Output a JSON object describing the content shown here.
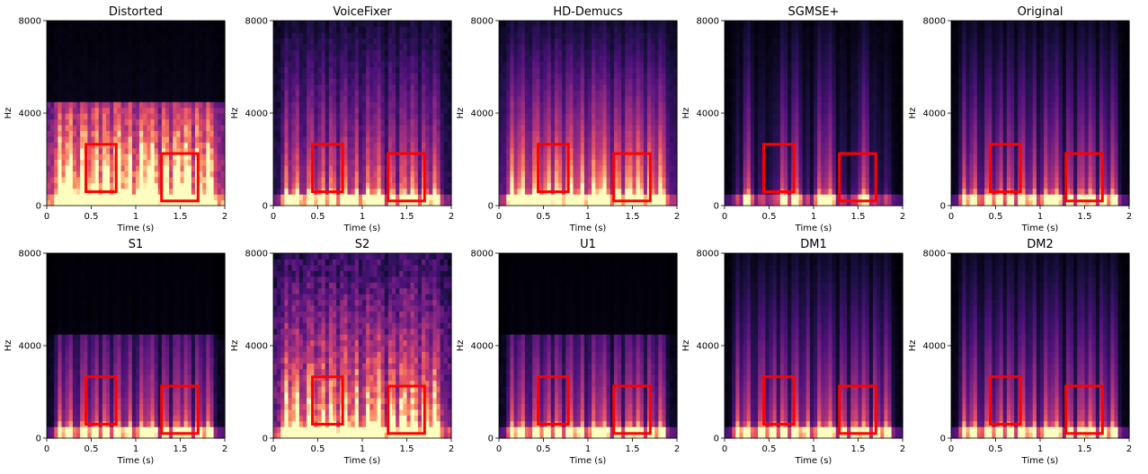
{
  "figure": {
    "background": "#ffffff",
    "spectrogram_colormap": "magma",
    "highlight_color": "#ff0000"
  },
  "chart_data": [
    {
      "type": "heatmap",
      "title": "Distorted",
      "xlabel": "Time (s)",
      "ylabel": "Hz",
      "xlim": [
        0,
        2
      ],
      "ylim": [
        0,
        8000
      ],
      "xticks": [
        "0",
        "0.5",
        "1",
        "1.5",
        "2"
      ],
      "yticks": [
        "0",
        "4000",
        "8000"
      ],
      "profile": "bandlimited",
      "highlight_boxes": [
        {
          "t0": 0.44,
          "t1": 0.78,
          "f0": 600,
          "f1": 2650
        },
        {
          "t0": 1.29,
          "t1": 1.7,
          "f0": 200,
          "f1": 2250
        }
      ]
    },
    {
      "type": "heatmap",
      "title": "VoiceFixer",
      "xlabel": "Time (s)",
      "ylabel": "Hz",
      "xlim": [
        0,
        2
      ],
      "ylim": [
        0,
        8000
      ],
      "xticks": [
        "0",
        "0.5",
        "1",
        "1.5",
        "2"
      ],
      "yticks": [
        "0",
        "4000",
        "8000"
      ],
      "profile": "fullband",
      "highlight_boxes": [
        {
          "t0": 0.44,
          "t1": 0.78,
          "f0": 600,
          "f1": 2650
        },
        {
          "t0": 1.29,
          "t1": 1.7,
          "f0": 200,
          "f1": 2250
        }
      ]
    },
    {
      "type": "heatmap",
      "title": "HD-Demucs",
      "xlabel": "Time (s)",
      "ylabel": "Hz",
      "xlim": [
        0,
        2
      ],
      "ylim": [
        0,
        8000
      ],
      "xticks": [
        "0",
        "0.5",
        "1",
        "1.5",
        "2"
      ],
      "yticks": [
        "0",
        "4000",
        "8000"
      ],
      "profile": "smeared",
      "highlight_boxes": [
        {
          "t0": 0.44,
          "t1": 0.78,
          "f0": 600,
          "f1": 2650
        },
        {
          "t0": 1.29,
          "t1": 1.7,
          "f0": 200,
          "f1": 2250
        }
      ]
    },
    {
      "type": "heatmap",
      "title": "SGMSE+",
      "xlabel": "Time (s)",
      "ylabel": "Hz",
      "xlim": [
        0,
        2
      ],
      "ylim": [
        0,
        8000
      ],
      "xticks": [
        "0",
        "0.5",
        "1",
        "1.5",
        "2"
      ],
      "yticks": [
        "0",
        "4000",
        "8000"
      ],
      "profile": "sparse",
      "highlight_boxes": [
        {
          "t0": 0.44,
          "t1": 0.78,
          "f0": 600,
          "f1": 2650
        },
        {
          "t0": 1.29,
          "t1": 1.7,
          "f0": 200,
          "f1": 2250
        }
      ]
    },
    {
      "type": "heatmap",
      "title": "Original",
      "xlabel": "Time (s)",
      "ylabel": "Hz",
      "xlim": [
        0,
        2
      ],
      "ylim": [
        0,
        8000
      ],
      "xticks": [
        "0",
        "0.5",
        "1",
        "1.5",
        "2"
      ],
      "yticks": [
        "0",
        "4000",
        "8000"
      ],
      "profile": "clean",
      "highlight_boxes": [
        {
          "t0": 0.44,
          "t1": 0.78,
          "f0": 600,
          "f1": 2650
        },
        {
          "t0": 1.29,
          "t1": 1.7,
          "f0": 200,
          "f1": 2250
        }
      ]
    },
    {
      "type": "heatmap",
      "title": "S1",
      "xlabel": "Time (s)",
      "ylabel": "Hz",
      "xlim": [
        0,
        2
      ],
      "ylim": [
        0,
        8000
      ],
      "xticks": [
        "0",
        "0.5",
        "1",
        "1.5",
        "2"
      ],
      "yticks": [
        "0",
        "4000",
        "8000"
      ],
      "profile": "bandlimited_clean",
      "highlight_boxes": [
        {
          "t0": 0.44,
          "t1": 0.78,
          "f0": 600,
          "f1": 2650
        },
        {
          "t0": 1.29,
          "t1": 1.7,
          "f0": 200,
          "f1": 2250
        }
      ]
    },
    {
      "type": "heatmap",
      "title": "S2",
      "xlabel": "Time (s)",
      "ylabel": "Hz",
      "xlim": [
        0,
        2
      ],
      "ylim": [
        0,
        8000
      ],
      "xticks": [
        "0",
        "0.5",
        "1",
        "1.5",
        "2"
      ],
      "yticks": [
        "0",
        "4000",
        "8000"
      ],
      "profile": "noisy",
      "highlight_boxes": [
        {
          "t0": 0.44,
          "t1": 0.78,
          "f0": 600,
          "f1": 2650
        },
        {
          "t0": 1.29,
          "t1": 1.7,
          "f0": 200,
          "f1": 2250
        }
      ]
    },
    {
      "type": "heatmap",
      "title": "U1",
      "xlabel": "Time (s)",
      "ylabel": "Hz",
      "xlim": [
        0,
        2
      ],
      "ylim": [
        0,
        8000
      ],
      "xticks": [
        "0",
        "0.5",
        "1",
        "1.5",
        "2"
      ],
      "yticks": [
        "0",
        "4000",
        "8000"
      ],
      "profile": "bandlimited_clean",
      "highlight_boxes": [
        {
          "t0": 0.44,
          "t1": 0.78,
          "f0": 600,
          "f1": 2650
        },
        {
          "t0": 1.29,
          "t1": 1.7,
          "f0": 200,
          "f1": 2250
        }
      ]
    },
    {
      "type": "heatmap",
      "title": "DM1",
      "xlabel": "Time (s)",
      "ylabel": "Hz",
      "xlim": [
        0,
        2
      ],
      "ylim": [
        0,
        8000
      ],
      "xticks": [
        "0",
        "0.5",
        "1",
        "1.5",
        "2"
      ],
      "yticks": [
        "0",
        "4000",
        "8000"
      ],
      "profile": "clean",
      "highlight_boxes": [
        {
          "t0": 0.44,
          "t1": 0.78,
          "f0": 600,
          "f1": 2650
        },
        {
          "t0": 1.29,
          "t1": 1.7,
          "f0": 200,
          "f1": 2250
        }
      ]
    },
    {
      "type": "heatmap",
      "title": "DM2",
      "xlabel": "Time (s)",
      "ylabel": "Hz",
      "xlim": [
        0,
        2
      ],
      "ylim": [
        0,
        8000
      ],
      "xticks": [
        "0",
        "0.5",
        "1",
        "1.5",
        "2"
      ],
      "yticks": [
        "0",
        "4000",
        "8000"
      ],
      "profile": "clean",
      "highlight_boxes": [
        {
          "t0": 0.44,
          "t1": 0.78,
          "f0": 600,
          "f1": 2650
        },
        {
          "t0": 1.29,
          "t1": 1.7,
          "f0": 200,
          "f1": 2250
        }
      ]
    }
  ]
}
